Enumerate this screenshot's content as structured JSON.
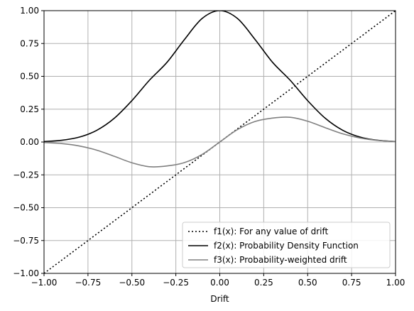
{
  "chart_data": {
    "type": "line",
    "title": "",
    "xlabel": "Drift",
    "ylabel": "",
    "xlim": [
      -1.0,
      1.0
    ],
    "ylim": [
      -1.0,
      1.0
    ],
    "xticks": [
      -1.0,
      -0.75,
      -0.5,
      -0.25,
      0.0,
      0.25,
      0.5,
      0.75,
      1.0
    ],
    "yticks": [
      -1.0,
      -0.75,
      -0.5,
      -0.25,
      0.0,
      0.25,
      0.5,
      0.75,
      1.0
    ],
    "xtick_labels": [
      "−1.00",
      "−0.75",
      "−0.50",
      "−0.25",
      "0.00",
      "0.25",
      "0.50",
      "0.75",
      "1.00"
    ],
    "ytick_labels": [
      "−1.00",
      "−0.75",
      "−0.50",
      "−0.25",
      "0.00",
      "0.25",
      "0.50",
      "0.75",
      "1.00"
    ],
    "grid": true,
    "legend_position": "lower-right",
    "x": [
      -1.0,
      -0.9,
      -0.8,
      -0.7,
      -0.6,
      -0.5,
      -0.4,
      -0.3,
      -0.2,
      -0.1,
      0.0,
      0.1,
      0.2,
      0.3,
      0.4,
      0.5,
      0.6,
      0.7,
      0.8,
      0.9,
      1.0
    ],
    "series": [
      {
        "name": "f1(x): For any value of drift",
        "color": "#000000",
        "style": "dotted",
        "values": [
          -1.0,
          -0.9,
          -0.8,
          -0.7,
          -0.6,
          -0.5,
          -0.4,
          -0.3,
          -0.2,
          -0.1,
          0.0,
          0.1,
          0.2,
          0.3,
          0.4,
          0.5,
          0.6,
          0.7,
          0.8,
          0.9,
          1.0
        ]
      },
      {
        "name": "f2(x): Probability Density Function",
        "color": "#000000",
        "style": "solid",
        "values": [
          0.004,
          0.013,
          0.037,
          0.089,
          0.181,
          0.315,
          0.471,
          0.607,
          0.782,
          0.941,
          1.0,
          0.941,
          0.782,
          0.607,
          0.471,
          0.315,
          0.181,
          0.089,
          0.037,
          0.013,
          0.004
        ]
      },
      {
        "name": "f3(x): Probability-weighted drift",
        "color": "#808080",
        "style": "solid",
        "values": [
          -0.004,
          -0.012,
          -0.03,
          -0.062,
          -0.109,
          -0.158,
          -0.188,
          -0.182,
          -0.156,
          -0.094,
          0.0,
          0.094,
          0.156,
          0.182,
          0.188,
          0.158,
          0.109,
          0.062,
          0.03,
          0.012,
          0.004
        ]
      }
    ]
  }
}
